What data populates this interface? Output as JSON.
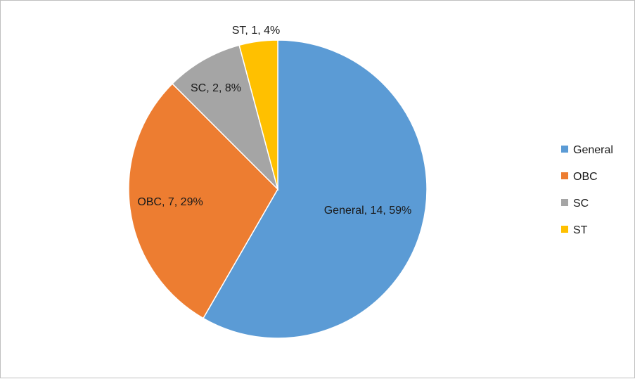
{
  "chart_data": {
    "type": "pie",
    "title": "",
    "categories": [
      "General",
      "OBC",
      "SC",
      "ST"
    ],
    "values": [
      14,
      7,
      2,
      1
    ],
    "percent_labels": [
      "59%",
      "29%",
      "8%",
      "4%"
    ],
    "data_labels": [
      "General, 14, 59%",
      "OBC, 7, 29%",
      "SC, 2, 8%",
      "ST, 1, 4%"
    ],
    "colors": [
      "#5B9BD5",
      "#ED7D31",
      "#A5A5A5",
      "#FFC000"
    ],
    "legend": {
      "placement": "right",
      "entries": [
        "General",
        "OBC",
        "SC",
        "ST"
      ]
    }
  }
}
